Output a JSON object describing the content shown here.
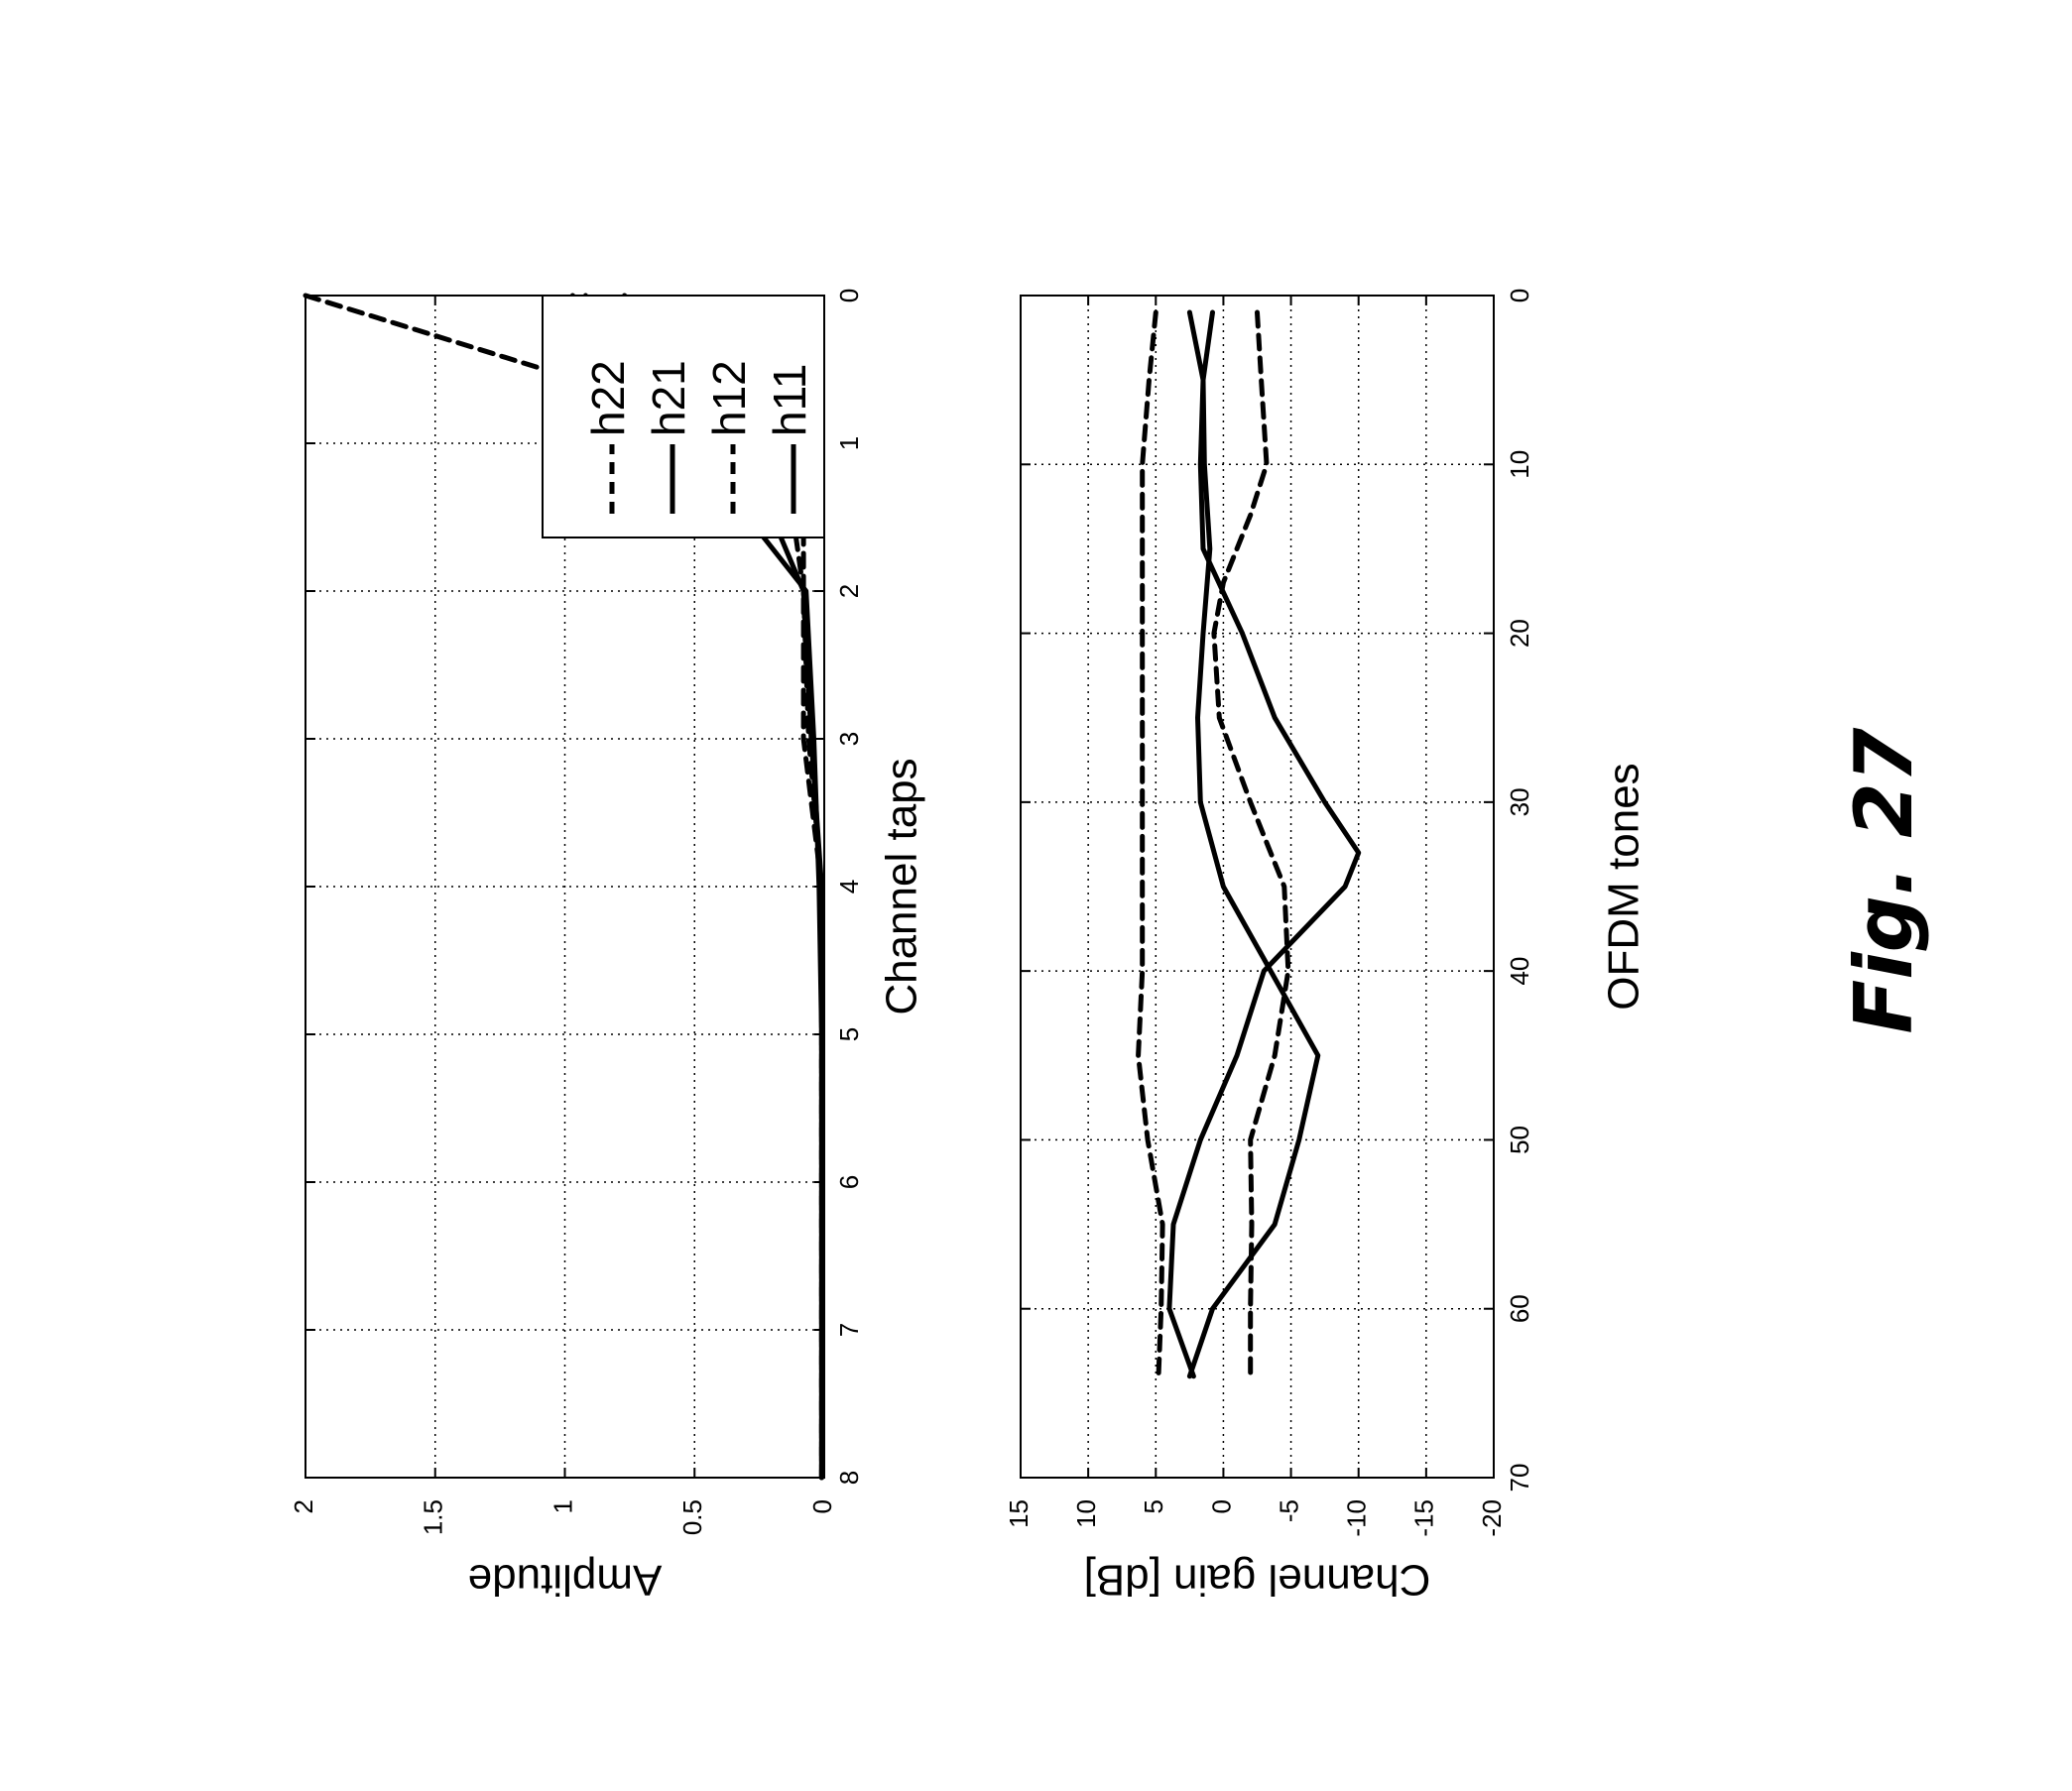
{
  "caption": "Fig. 27",
  "chart_data": [
    {
      "type": "line",
      "xlabel": "Channel taps",
      "ylabel": "Amplitude",
      "xlim": [
        0,
        8
      ],
      "ylim": [
        0,
        2
      ],
      "xticks": [
        "0",
        "1",
        "2",
        "3",
        "4",
        "5",
        "6",
        "7",
        "8"
      ],
      "yticks": [
        "0",
        "0.5",
        "1",
        "1.5",
        "2"
      ],
      "grid": true,
      "legend_position": "top-right",
      "series": [
        {
          "name": "h11",
          "style": "solid",
          "x": [
            0,
            1,
            2,
            3,
            4,
            5,
            6,
            7,
            8
          ],
          "y": [
            0.92,
            0.52,
            0.07,
            0.04,
            0.02,
            0.01,
            0.01,
            0.01,
            0.01
          ]
        },
        {
          "name": "h12",
          "style": "dashed",
          "x": [
            0,
            1,
            2,
            3,
            4,
            5,
            6,
            7,
            8
          ],
          "y": [
            2.0,
            0.16,
            0.08,
            0.06,
            0.01,
            0.01,
            0.01,
            0.01,
            0.01
          ]
        },
        {
          "name": "h21",
          "style": "solid",
          "x": [
            0,
            1,
            2,
            3,
            4,
            5,
            6,
            7,
            8
          ],
          "y": [
            0.97,
            0.32,
            0.08,
            0.05,
            0.01,
            0.01,
            0.01,
            0.01,
            0.01
          ]
        },
        {
          "name": "h22",
          "style": "dashed",
          "x": [
            0,
            1,
            2,
            3,
            4,
            5,
            6,
            7,
            8
          ],
          "y": [
            0.77,
            0.08,
            0.08,
            0.08,
            0.01,
            0.01,
            0.01,
            0.01,
            0.01
          ]
        }
      ]
    },
    {
      "type": "line",
      "xlabel": "OFDM tones",
      "ylabel": "Channel gain [dB]",
      "xlim": [
        0,
        70
      ],
      "ylim": [
        -20,
        15
      ],
      "xticks": [
        "0",
        "10",
        "20",
        "30",
        "40",
        "50",
        "60",
        "70"
      ],
      "yticks": [
        "-20",
        "-15",
        "-10",
        "-5",
        "0",
        "5",
        "10",
        "15"
      ],
      "grid": true,
      "series": [
        {
          "style": "solid",
          "x": [
            1,
            5,
            10,
            15,
            20,
            25,
            30,
            35,
            40,
            45,
            50,
            55,
            60,
            64
          ],
          "y": [
            0.8,
            1.5,
            1.4,
            1.0,
            1.5,
            1.9,
            1.7,
            0.0,
            -3.5,
            -7.0,
            -5.6,
            -3.8,
            0.8,
            2.5
          ]
        },
        {
          "style": "solid",
          "x": [
            1,
            5,
            10,
            15,
            20,
            25,
            30,
            33,
            35,
            40,
            45,
            50,
            55,
            60,
            64
          ],
          "y": [
            2.5,
            1.5,
            1.7,
            1.5,
            -1.4,
            -3.8,
            -7.5,
            -10.0,
            -9.0,
            -3.0,
            -1.0,
            1.7,
            3.7,
            4.0,
            2.2
          ]
        },
        {
          "style": "dashed",
          "x": [
            1,
            5,
            10,
            15,
            20,
            25,
            30,
            35,
            40,
            45,
            50,
            55,
            60,
            64
          ],
          "y": [
            5.0,
            5.5,
            6.0,
            6.0,
            6.0,
            6.0,
            6.0,
            6.0,
            6.0,
            6.3,
            5.6,
            4.5,
            4.6,
            4.8
          ]
        },
        {
          "style": "dashed",
          "x": [
            1,
            5,
            10,
            13,
            17,
            20,
            25,
            30,
            35,
            40,
            45,
            50,
            55,
            60,
            64
          ],
          "y": [
            -2.5,
            -2.8,
            -3.2,
            -2.0,
            0.0,
            0.7,
            0.3,
            -2.0,
            -4.5,
            -4.8,
            -3.8,
            -2.0,
            -2.1,
            -2.0,
            -2.0
          ]
        }
      ]
    }
  ]
}
